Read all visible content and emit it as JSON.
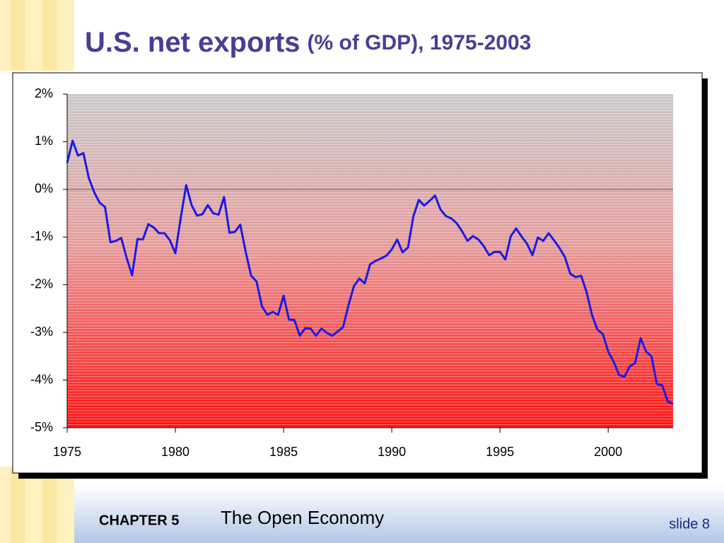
{
  "chart_data": {
    "type": "line",
    "title": "U.S. net exports",
    "title_note": "(% of GDP), 1975-2003",
    "x": [
      1975,
      1975.25,
      1975.5,
      1975.75,
      1976,
      1976.25,
      1976.5,
      1976.75,
      1977,
      1977.25,
      1977.5,
      1977.75,
      1978,
      1978.25,
      1978.5,
      1978.75,
      1979,
      1979.25,
      1979.5,
      1979.75,
      1980,
      1980.25,
      1980.5,
      1980.75,
      1981,
      1981.25,
      1981.5,
      1981.75,
      1982,
      1982.25,
      1982.5,
      1982.75,
      1983,
      1983.25,
      1983.5,
      1983.75,
      1984,
      1984.25,
      1984.5,
      1984.75,
      1985,
      1985.25,
      1985.5,
      1985.75,
      1986,
      1986.25,
      1986.5,
      1986.75,
      1987,
      1987.25,
      1987.5,
      1987.75,
      1988,
      1988.25,
      1988.5,
      1988.75,
      1989,
      1989.25,
      1989.5,
      1989.75,
      1990,
      1990.25,
      1990.5,
      1990.75,
      1991,
      1991.25,
      1991.5,
      1991.75,
      1992,
      1992.25,
      1992.5,
      1992.75,
      1993,
      1993.25,
      1993.5,
      1993.75,
      1994,
      1994.25,
      1994.5,
      1994.75,
      1995,
      1995.25,
      1995.5,
      1995.75,
      1996,
      1996.25,
      1996.5,
      1996.75,
      1997,
      1997.25,
      1997.5,
      1997.75,
      1998,
      1998.25,
      1998.5,
      1998.75,
      1999,
      1999.25,
      1999.5,
      1999.75,
      2000,
      2000.25,
      2000.5,
      2000.75,
      2001,
      2001.25,
      2001.5,
      2001.75,
      2002,
      2002.25,
      2002.5,
      2002.75,
      2003
    ],
    "values": [
      0.56,
      1.02,
      0.71,
      0.76,
      0.24,
      -0.06,
      -0.28,
      -0.37,
      -1.11,
      -1.08,
      -1.02,
      -1.44,
      -1.8,
      -1.04,
      -1.05,
      -0.73,
      -0.8,
      -0.92,
      -0.92,
      -1.07,
      -1.34,
      -0.59,
      0.09,
      -0.33,
      -0.55,
      -0.52,
      -0.33,
      -0.5,
      -0.53,
      -0.16,
      -0.91,
      -0.89,
      -0.74,
      -1.31,
      -1.81,
      -1.93,
      -2.45,
      -2.63,
      -2.57,
      -2.63,
      -2.23,
      -2.73,
      -2.74,
      -3.07,
      -2.91,
      -2.92,
      -3.07,
      -2.92,
      -3.01,
      -3.07,
      -2.98,
      -2.89,
      -2.43,
      -2.03,
      -1.87,
      -1.97,
      -1.57,
      -1.5,
      -1.45,
      -1.39,
      -1.26,
      -1.05,
      -1.32,
      -1.22,
      -0.56,
      -0.22,
      -0.34,
      -0.24,
      -0.13,
      -0.42,
      -0.56,
      -0.61,
      -0.71,
      -0.88,
      -1.08,
      -0.98,
      -1.05,
      -1.19,
      -1.38,
      -1.31,
      -1.31,
      -1.47,
      -0.98,
      -0.82,
      -0.99,
      -1.14,
      -1.38,
      -1.01,
      -1.08,
      -0.92,
      -1.07,
      -1.23,
      -1.42,
      -1.77,
      -1.84,
      -1.81,
      -2.15,
      -2.63,
      -2.94,
      -3.03,
      -3.4,
      -3.61,
      -3.89,
      -3.93,
      -3.71,
      -3.64,
      -3.12,
      -3.4,
      -3.5,
      -4.08,
      -4.11,
      -4.45,
      -4.5
    ],
    "color": "#1a1ae6",
    "xlim": [
      1975,
      2003
    ],
    "xticks": [
      1975,
      1980,
      1985,
      1990,
      1995,
      2000
    ],
    "ylim": [
      -5,
      2
    ],
    "yticks": [
      {
        "value": 2,
        "label": "2%"
      },
      {
        "value": 1,
        "label": "1%"
      },
      {
        "value": 0,
        "label": "0%"
      },
      {
        "value": -1,
        "label": "-1%"
      },
      {
        "value": -2,
        "label": "-2%"
      },
      {
        "value": -3,
        "label": "-3%"
      },
      {
        "value": -4,
        "label": "-4%"
      },
      {
        "value": -5,
        "label": "-5%"
      }
    ],
    "zero_line": true
  },
  "footer": {
    "chapter": "CHAPTER 5",
    "topic": "The Open Economy",
    "slide": "slide 8"
  }
}
